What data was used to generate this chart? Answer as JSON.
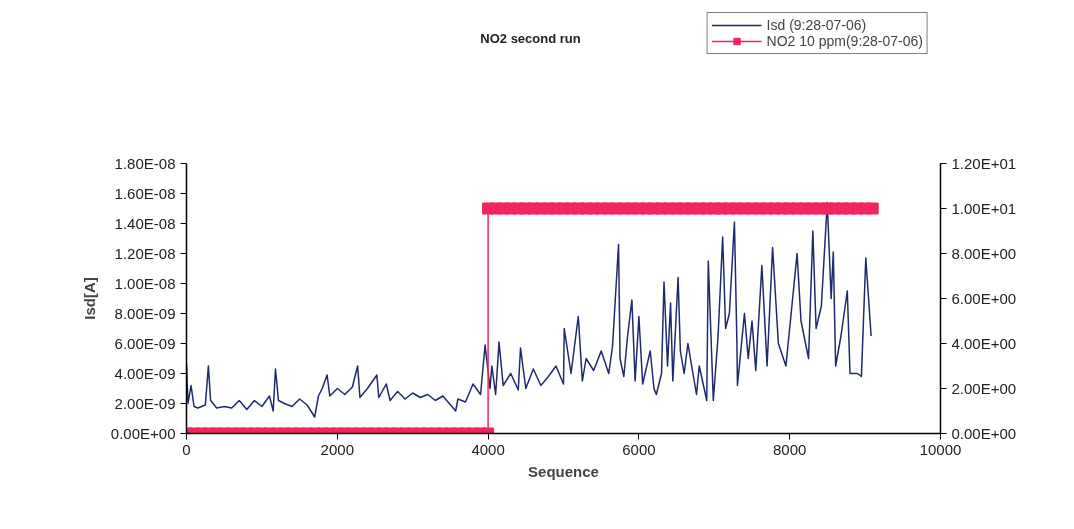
{
  "chart_data": {
    "type": "line",
    "title": "NO2 second run",
    "xlabel": "Sequence",
    "ylabel": "Isd[A]",
    "xlim": [
      0,
      10000
    ],
    "xticks": [
      0,
      2000,
      4000,
      6000,
      8000,
      10000
    ],
    "ylim": [
      0,
      1.8e-08
    ],
    "yticks": [
      {
        "value": 0,
        "label": "0.00E+00"
      },
      {
        "value": 2e-09,
        "label": "2.00E-09"
      },
      {
        "value": 4e-09,
        "label": "4.00E-09"
      },
      {
        "value": 6e-09,
        "label": "6.00E-09"
      },
      {
        "value": 8e-09,
        "label": "8.00E-09"
      },
      {
        "value": 1e-08,
        "label": "1.00E-08"
      },
      {
        "value": 1.2e-08,
        "label": "1.20E-08"
      },
      {
        "value": 1.4e-08,
        "label": "1.40E-08"
      },
      {
        "value": 1.6e-08,
        "label": "1.60E-08"
      },
      {
        "value": 1.8e-08,
        "label": "1.80E-08"
      }
    ],
    "y2lim": [
      0,
      12
    ],
    "y2ticks": [
      {
        "value": 0,
        "label": "0.00E+00"
      },
      {
        "value": 2,
        "label": "2.00E+00"
      },
      {
        "value": 4,
        "label": "4.00E+00"
      },
      {
        "value": 6,
        "label": "6.00E+00"
      },
      {
        "value": 8,
        "label": "8.00E+00"
      },
      {
        "value": 10,
        "label": "1.00E+01"
      },
      {
        "value": 12,
        "label": "1.20E+01"
      }
    ],
    "grid": false,
    "legend": "top right",
    "line_style": "solid",
    "series": [
      {
        "name": "Isd (9:28-07-06)",
        "color": "#1f2a6e",
        "marker": "none",
        "x": [
          0,
          20,
          60,
          100,
          150,
          250,
          290,
          320,
          400,
          500,
          600,
          700,
          800,
          900,
          1000,
          1100,
          1150,
          1180,
          1220,
          1300,
          1400,
          1500,
          1600,
          1700,
          1750,
          1800,
          1865,
          1900,
          2000,
          2100,
          2200,
          2270,
          2300,
          2400,
          2525,
          2550,
          2650,
          2700,
          2800,
          2900,
          3000,
          3100,
          3200,
          3300,
          3400,
          3570,
          3600,
          3700,
          3800,
          3900,
          3960,
          4025,
          4050,
          4100,
          4145,
          4200,
          4300,
          4400,
          4430,
          4500,
          4600,
          4700,
          4800,
          4900,
          5000,
          5010,
          5100,
          5196,
          5250,
          5300,
          5400,
          5500,
          5600,
          5650,
          5730,
          5750,
          5800,
          5850,
          5907,
          5950,
          6000,
          6050,
          6150,
          6200,
          6231,
          6300,
          6333,
          6380,
          6420,
          6450,
          6520,
          6550,
          6600,
          6650,
          6764,
          6800,
          6900,
          6920,
          6987,
          7050,
          7111,
          7150,
          7200,
          7267,
          7300,
          7307,
          7400,
          7450,
          7500,
          7550,
          7631,
          7700,
          7773,
          7850,
          7950,
          8098,
          8150,
          8250,
          8307,
          8350,
          8420,
          8498,
          8550,
          8578,
          8609,
          8680,
          8764,
          8800,
          8900,
          8951,
          9009,
          9080
        ],
        "values": [
          4.7e-09,
          2e-09,
          3.2e-09,
          1.8e-09,
          1.7e-09,
          1.9e-09,
          4.5e-09,
          2.2e-09,
          1.7e-09,
          1.8e-09,
          1.7e-09,
          2.2e-09,
          1.6e-09,
          2.2e-09,
          1.8e-09,
          2.5e-09,
          1.5e-09,
          4.3e-09,
          2.2e-09,
          2e-09,
          1.8e-09,
          2.3e-09,
          1.9e-09,
          1.1e-09,
          2.5e-09,
          3e-09,
          3.9e-09,
          2.5e-09,
          3e-09,
          2.6e-09,
          3.1e-09,
          4.5e-09,
          2.4e-09,
          3e-09,
          3.9e-09,
          2.4e-09,
          3.3e-09,
          2.2e-09,
          2.8e-09,
          2.3e-09,
          2.7e-09,
          2.4e-09,
          2.6e-09,
          2.2e-09,
          2.5e-09,
          1.5e-09,
          2.3e-09,
          2.1e-09,
          3.3e-09,
          2.6e-09,
          5.9e-09,
          3e-09,
          4.5e-09,
          2.6e-09,
          6.1e-09,
          3.2e-09,
          4e-09,
          2.9e-09,
          5.7e-09,
          3e-09,
          4.3e-09,
          3.2e-09,
          3.8e-09,
          4.5e-09,
          3.3e-09,
          7e-09,
          4e-09,
          7.8e-09,
          3.5e-09,
          5e-09,
          4.2e-09,
          5.5e-09,
          4e-09,
          5.8e-09,
          1.26e-08,
          5e-09,
          3.8e-09,
          6.5e-09,
          8.9e-09,
          3.5e-09,
          7.8e-09,
          3.3e-09,
          5.5e-09,
          3e-09,
          2.6e-09,
          4e-09,
          1.01e-08,
          4.5e-09,
          8.7e-09,
          3.5e-09,
          1.04e-08,
          5.5e-09,
          4e-09,
          6e-09,
          2.6e-09,
          4.5e-09,
          2.2e-09,
          1.15e-08,
          2.2e-09,
          6.5e-09,
          1.31e-08,
          7e-09,
          8e-09,
          1.41e-08,
          6e-09,
          3.2e-09,
          8e-09,
          5e-09,
          7.5e-09,
          4.2e-09,
          1.12e-08,
          4.5e-09,
          1.24e-08,
          6e-09,
          4.5e-09,
          1.2e-08,
          7.5e-09,
          5e-09,
          1.35e-08,
          7e-09,
          8.5e-09,
          1.54e-08,
          9e-09,
          1.21e-08,
          4.5e-09,
          6.5e-09,
          9.5e-09,
          4e-09,
          4e-09,
          3.8e-09,
          1.17e-08,
          6.5e-09
        ]
      },
      {
        "name": "NO2 10 ppm(9:28-07-06)",
        "color": "#f0245e",
        "marker": "square",
        "axis": "y2",
        "x": [
          0,
          100,
          200,
          300,
          400,
          500,
          600,
          700,
          800,
          900,
          1000,
          1100,
          1200,
          1300,
          1400,
          1500,
          1600,
          1700,
          1800,
          1900,
          2000,
          2100,
          2200,
          2300,
          2400,
          2500,
          2600,
          2700,
          2800,
          2900,
          3000,
          3100,
          3200,
          3300,
          3400,
          3500,
          3600,
          3700,
          3800,
          3900,
          4000,
          4000,
          4100,
          4200,
          4300,
          4400,
          4500,
          4600,
          4700,
          4800,
          4900,
          5000,
          5100,
          5200,
          5300,
          5400,
          5500,
          5600,
          5700,
          5800,
          5900,
          6000,
          6100,
          6200,
          6300,
          6400,
          6500,
          6600,
          6700,
          6800,
          6900,
          7000,
          7100,
          7200,
          7300,
          7400,
          7500,
          7600,
          7700,
          7800,
          7900,
          8000,
          8100,
          8200,
          8300,
          8400,
          8500,
          8600,
          8700,
          8800,
          8900,
          9000,
          9100
        ],
        "values": [
          0,
          0,
          0,
          0,
          0,
          0,
          0,
          0,
          0,
          0,
          0,
          0,
          0,
          0,
          0,
          0,
          0,
          0,
          0,
          0,
          0,
          0,
          0,
          0,
          0,
          0,
          0,
          0,
          0,
          0,
          0,
          0,
          0,
          0,
          0,
          0,
          0,
          0,
          0,
          0,
          0,
          10,
          10,
          10,
          10,
          10,
          10,
          10,
          10,
          10,
          10,
          10,
          10,
          10,
          10,
          10,
          10,
          10,
          10,
          10,
          10,
          10,
          10,
          10,
          10,
          10,
          10,
          10,
          10,
          10,
          10,
          10,
          10,
          10,
          10,
          10,
          10,
          10,
          10,
          10,
          10,
          10,
          10,
          10,
          10,
          10,
          10,
          10,
          10,
          10,
          10,
          10,
          10
        ]
      }
    ]
  }
}
